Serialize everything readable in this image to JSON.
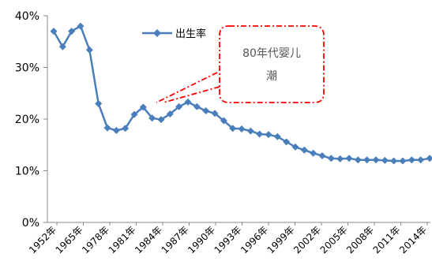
{
  "chart_data": {
    "type": "line",
    "title": "",
    "xlabel": "",
    "ylabel": "",
    "ylim": [
      0,
      40
    ],
    "y_ticks": [
      "0%",
      "10%",
      "20%",
      "30%",
      "40%"
    ],
    "x_tick_labels": [
      "1952年",
      "1965年",
      "1978年",
      "1981年",
      "1984年",
      "1987年",
      "1990年",
      "1993年",
      "1996年",
      "1999年",
      "2002年",
      "2005年",
      "2008年",
      "2011年",
      "2014年"
    ],
    "legend": {
      "position": "top-center"
    },
    "grid": false,
    "series": [
      {
        "name": "出生率",
        "color": "#4a7ebb",
        "marker": "diamond",
        "values": [
          37.0,
          34.0,
          37.0,
          38.0,
          33.4,
          23.0,
          18.3,
          17.8,
          18.2,
          20.9,
          22.3,
          20.2,
          19.9,
          21.0,
          22.4,
          23.3,
          22.4,
          21.6,
          21.1,
          19.7,
          18.2,
          18.1,
          17.7,
          17.1,
          17.0,
          16.6,
          15.6,
          14.6,
          14.0,
          13.4,
          12.9,
          12.4,
          12.3,
          12.4,
          12.1,
          12.1,
          12.1,
          12.0,
          11.9,
          11.9,
          12.1,
          12.1,
          12.4
        ]
      }
    ],
    "annotation": {
      "text_line1": "80年代婴儿",
      "text_line2": "潮",
      "color": "#ff0000"
    }
  }
}
